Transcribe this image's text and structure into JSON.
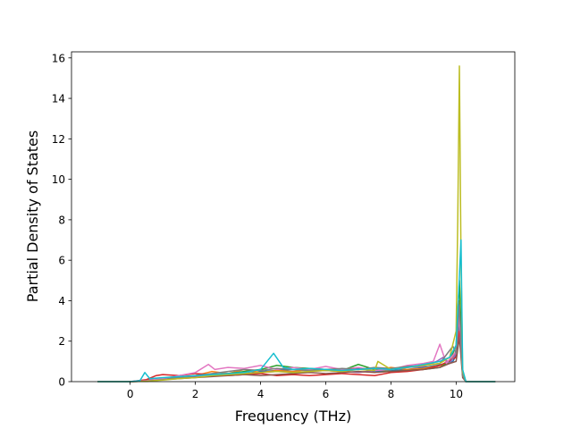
{
  "chart_data": {
    "type": "line",
    "title": "",
    "xlabel": "Frequency (THz)",
    "ylabel": "Partial Density of States",
    "xlim": [
      -1.8,
      11.8
    ],
    "ylim": [
      0,
      16.3
    ],
    "xticks": [
      0,
      2,
      4,
      6,
      8,
      10
    ],
    "yticks": [
      0,
      2,
      4,
      6,
      8,
      10,
      12,
      14,
      16
    ],
    "xtick_labels": [
      "0",
      "2",
      "4",
      "6",
      "8",
      "10"
    ],
    "ytick_labels": [
      "0",
      "2",
      "4",
      "6",
      "8",
      "10",
      "12",
      "14",
      "16"
    ],
    "grid": false,
    "legend": "none",
    "series": [
      {
        "color": "#1f77b4",
        "x": [
          -1.0,
          0.0,
          0.3,
          0.6,
          1.0,
          1.5,
          2.0,
          2.5,
          3.0,
          3.5,
          4.0,
          4.5,
          5.0,
          5.5,
          6.0,
          6.5,
          7.0,
          7.5,
          8.0,
          8.5,
          9.0,
          9.4,
          9.7,
          9.9,
          10.0,
          10.1,
          10.2,
          10.3,
          11.2
        ],
        "y": [
          0,
          0,
          0.02,
          0.1,
          0.15,
          0.2,
          0.25,
          0.3,
          0.35,
          0.4,
          0.5,
          0.55,
          0.6,
          0.55,
          0.6,
          0.5,
          0.65,
          0.5,
          0.55,
          0.6,
          0.7,
          0.8,
          0.9,
          1.0,
          1.3,
          3.0,
          0.3,
          0,
          0
        ]
      },
      {
        "color": "#ff7f0e",
        "x": [
          -1.0,
          0.0,
          0.5,
          1.0,
          1.5,
          2.0,
          2.5,
          3.0,
          3.5,
          4.0,
          4.5,
          5.0,
          5.5,
          6.0,
          6.5,
          7.0,
          7.5,
          8.0,
          8.5,
          9.0,
          9.5,
          9.8,
          10.0,
          10.1,
          10.2,
          10.3,
          11.2
        ],
        "y": [
          0,
          0,
          0.05,
          0.1,
          0.2,
          0.3,
          0.5,
          0.4,
          0.6,
          0.45,
          0.55,
          0.5,
          0.6,
          0.55,
          0.5,
          0.45,
          0.55,
          0.7,
          0.6,
          0.65,
          0.8,
          0.9,
          1.5,
          4.0,
          0.5,
          0,
          0
        ]
      },
      {
        "color": "#2ca02c",
        "x": [
          -1.0,
          0.0,
          0.5,
          1.0,
          1.5,
          2.0,
          2.5,
          3.0,
          3.5,
          4.0,
          4.5,
          5.0,
          5.5,
          6.0,
          6.5,
          7.0,
          7.5,
          8.0,
          8.5,
          9.0,
          9.5,
          9.8,
          10.0,
          10.1,
          10.2,
          10.3,
          11.2
        ],
        "y": [
          0,
          0,
          0.05,
          0.15,
          0.2,
          0.3,
          0.35,
          0.4,
          0.5,
          0.6,
          0.8,
          0.7,
          0.65,
          0.6,
          0.55,
          0.85,
          0.6,
          0.5,
          0.55,
          0.6,
          0.7,
          1.0,
          1.8,
          5.0,
          0.4,
          0,
          0
        ]
      },
      {
        "color": "#d62728",
        "x": [
          -1.0,
          0.0,
          0.5,
          0.8,
          1.0,
          1.5,
          2.0,
          2.5,
          3.0,
          3.5,
          4.0,
          4.5,
          5.0,
          5.5,
          6.0,
          6.5,
          7.0,
          7.5,
          8.0,
          8.5,
          9.0,
          9.5,
          10.0,
          10.1,
          10.2,
          10.3,
          11.2
        ],
        "y": [
          0,
          0,
          0.1,
          0.3,
          0.35,
          0.3,
          0.4,
          0.35,
          0.3,
          0.35,
          0.4,
          0.3,
          0.35,
          0.3,
          0.35,
          0.4,
          0.35,
          0.3,
          0.45,
          0.5,
          0.6,
          0.8,
          1.2,
          2.5,
          0.3,
          0,
          0
        ]
      },
      {
        "color": "#9467bd",
        "x": [
          -1.0,
          0.0,
          0.5,
          1.0,
          1.5,
          2.0,
          2.5,
          3.0,
          3.5,
          4.0,
          4.5,
          5.0,
          5.5,
          6.0,
          6.5,
          7.0,
          7.5,
          8.0,
          8.5,
          9.0,
          9.4,
          9.6,
          9.8,
          10.0,
          10.1,
          10.2,
          10.3,
          11.2
        ],
        "y": [
          0,
          0,
          0.02,
          0.1,
          0.2,
          0.25,
          0.3,
          0.35,
          0.4,
          0.45,
          0.5,
          0.45,
          0.5,
          0.55,
          0.5,
          0.45,
          0.55,
          0.6,
          0.7,
          0.75,
          1.0,
          1.2,
          0.9,
          1.4,
          3.5,
          0.4,
          0,
          0
        ]
      },
      {
        "color": "#8c564b",
        "x": [
          -1.0,
          0.0,
          0.5,
          1.0,
          1.5,
          2.0,
          2.5,
          3.0,
          3.5,
          4.0,
          4.5,
          5.0,
          5.5,
          6.0,
          6.5,
          7.0,
          7.5,
          8.0,
          8.5,
          9.0,
          9.5,
          9.8,
          10.0,
          10.1,
          10.2,
          10.3,
          11.2
        ],
        "y": [
          0,
          0,
          0.02,
          0.1,
          0.15,
          0.2,
          0.25,
          0.3,
          0.35,
          0.3,
          0.35,
          0.4,
          0.45,
          0.4,
          0.45,
          0.5,
          0.45,
          0.5,
          0.55,
          0.6,
          0.7,
          0.9,
          1.0,
          2.2,
          0.2,
          0,
          0
        ]
      },
      {
        "color": "#e377c2",
        "x": [
          -1.0,
          0.0,
          0.5,
          1.0,
          1.5,
          2.0,
          2.4,
          2.6,
          3.0,
          3.5,
          4.0,
          4.5,
          5.0,
          5.5,
          6.0,
          6.5,
          7.0,
          7.5,
          8.0,
          8.5,
          9.0,
          9.3,
          9.5,
          9.7,
          10.0,
          10.1,
          10.2,
          10.3,
          11.2
        ],
        "y": [
          0,
          0,
          0.05,
          0.15,
          0.3,
          0.45,
          0.85,
          0.6,
          0.7,
          0.65,
          0.8,
          0.6,
          0.7,
          0.6,
          0.75,
          0.6,
          0.7,
          0.55,
          0.6,
          0.8,
          0.9,
          1.0,
          1.85,
          0.9,
          1.5,
          3.2,
          0.4,
          0,
          0
        ]
      },
      {
        "color": "#7f7f7f",
        "x": [
          -1.0,
          0.0,
          0.5,
          1.0,
          1.5,
          2.0,
          2.5,
          3.0,
          3.5,
          4.0,
          4.5,
          5.0,
          5.5,
          6.0,
          6.5,
          7.0,
          7.5,
          8.0,
          8.5,
          9.0,
          9.5,
          9.9,
          10.0,
          10.1,
          10.2,
          10.3,
          11.2
        ],
        "y": [
          0,
          0,
          0.02,
          0.1,
          0.2,
          0.3,
          0.4,
          0.5,
          0.6,
          0.55,
          0.65,
          0.6,
          0.55,
          0.6,
          0.65,
          0.6,
          0.7,
          0.65,
          0.75,
          0.8,
          0.9,
          1.75,
          1.4,
          3.8,
          0.3,
          0,
          0
        ]
      },
      {
        "color": "#bcbd22",
        "x": [
          -1.0,
          0.0,
          0.5,
          1.0,
          1.5,
          2.0,
          2.5,
          3.0,
          3.5,
          4.0,
          4.5,
          5.0,
          5.5,
          6.0,
          6.5,
          7.0,
          7.5,
          7.6,
          8.0,
          8.5,
          9.0,
          9.5,
          9.8,
          10.0,
          10.05,
          10.1,
          10.15,
          10.2,
          10.3,
          11.2
        ],
        "y": [
          0,
          0,
          0.02,
          0.08,
          0.15,
          0.2,
          0.3,
          0.35,
          0.4,
          0.45,
          0.5,
          0.45,
          0.5,
          0.55,
          0.5,
          0.6,
          0.55,
          1.0,
          0.6,
          0.7,
          0.8,
          0.9,
          1.2,
          2.5,
          8.0,
          15.6,
          6.0,
          0.5,
          0,
          0
        ]
      },
      {
        "color": "#17becf",
        "x": [
          -1.0,
          0.0,
          0.3,
          0.45,
          0.6,
          1.0,
          1.5,
          2.0,
          2.5,
          3.0,
          3.5,
          4.0,
          4.4,
          4.7,
          5.0,
          5.5,
          6.0,
          6.5,
          7.0,
          7.5,
          8.0,
          8.5,
          9.0,
          9.5,
          9.8,
          10.0,
          10.1,
          10.15,
          10.2,
          10.3,
          11.2
        ],
        "y": [
          0,
          0,
          0.05,
          0.45,
          0.15,
          0.2,
          0.25,
          0.3,
          0.35,
          0.4,
          0.45,
          0.6,
          1.4,
          0.7,
          0.6,
          0.65,
          0.6,
          0.55,
          0.6,
          0.65,
          0.6,
          0.7,
          0.85,
          1.0,
          1.2,
          1.8,
          5.2,
          7.0,
          0.6,
          0,
          0
        ]
      }
    ]
  }
}
